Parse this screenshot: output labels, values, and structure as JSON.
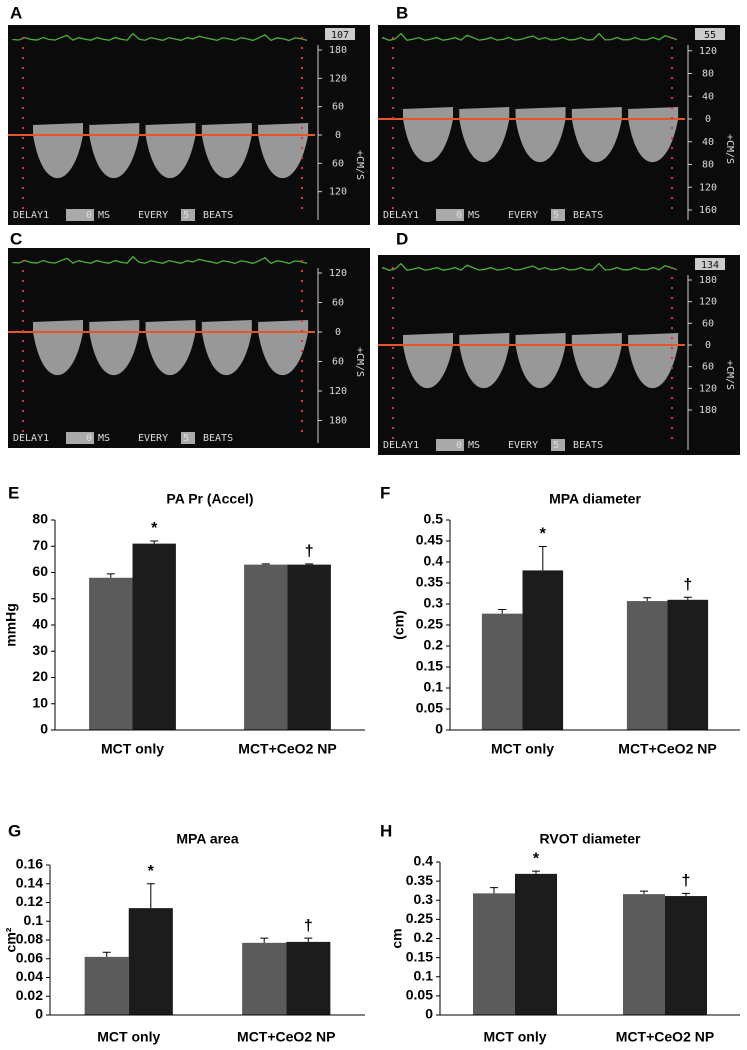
{
  "images": [
    {
      "panel": "A",
      "heart_rate": "107",
      "scale": [
        "180",
        "120",
        "60",
        "0",
        "60",
        "120"
      ],
      "unit": "+CM/S",
      "footer": [
        "DELAY1",
        "0",
        "MS",
        "EVERY",
        "5",
        "BEATS"
      ]
    },
    {
      "panel": "B",
      "heart_rate": "55",
      "scale": [
        "120",
        "80",
        "40",
        "0",
        "40",
        "80",
        "120",
        "160"
      ],
      "unit": "+CM/S",
      "footer": [
        "DELAY1",
        "0",
        "MS",
        "EVERY",
        "5",
        "BEATS"
      ]
    },
    {
      "panel": "C",
      "heart_rate": "",
      "scale": [
        "120",
        "60",
        "0",
        "60",
        "120",
        "180"
      ],
      "unit": "+CM/S",
      "footer": [
        "DELAY1",
        "0",
        "MS",
        "EVERY",
        "5",
        "BEATS"
      ]
    },
    {
      "panel": "D",
      "heart_rate": "134",
      "scale": [
        "180",
        "120",
        "60",
        "0",
        "60",
        "120",
        "180"
      ],
      "unit": "+CM/S",
      "footer": [
        "DELAY1",
        "0",
        "MS",
        "EVERY",
        "5",
        "BEATS"
      ]
    }
  ],
  "chart_data": [
    {
      "type": "bar",
      "panel": "E",
      "title": "PA Pr (Accel)",
      "y_label": "mmHg",
      "categories": [
        "MCT only",
        "MCT+CeO2 NP"
      ],
      "series": [
        {
          "color": "#5b5b5b",
          "values": [
            58,
            63
          ],
          "errors": [
            1.5,
            0.3
          ]
        },
        {
          "color": "#1c1c1c",
          "values": [
            71,
            63
          ],
          "errors": [
            1,
            0.3
          ],
          "annotations": [
            "*",
            "†"
          ]
        }
      ],
      "ylim": [
        0,
        80
      ],
      "yticks": [
        0,
        10,
        20,
        30,
        40,
        50,
        60,
        70,
        80
      ]
    },
    {
      "type": "bar",
      "panel": "F",
      "title": "MPA diameter",
      "y_label": "(cm)",
      "categories": [
        "MCT only",
        "MCT+CeO2 NP"
      ],
      "series": [
        {
          "color": "#5b5b5b",
          "values": [
            0.277,
            0.307
          ],
          "errors": [
            0.01,
            0.008
          ]
        },
        {
          "color": "#1c1c1c",
          "values": [
            0.38,
            0.31
          ],
          "errors": [
            0.057,
            0.006
          ],
          "annotations": [
            "*",
            "†"
          ]
        }
      ],
      "ylim": [
        0,
        0.5
      ],
      "yticks": [
        0,
        0.05,
        0.1,
        0.15,
        0.2,
        0.25,
        0.3,
        0.35,
        0.4,
        0.45,
        0.5
      ]
    },
    {
      "type": "bar",
      "panel": "G",
      "title": "MPA area",
      "y_label": "cm²",
      "categories": [
        "MCT only",
        "MCT+CeO2 NP"
      ],
      "series": [
        {
          "color": "#5b5b5b",
          "values": [
            0.062,
            0.077
          ],
          "errors": [
            0.005,
            0.005
          ]
        },
        {
          "color": "#1c1c1c",
          "values": [
            0.114,
            0.078
          ],
          "errors": [
            0.026,
            0.004
          ],
          "annotations": [
            "*",
            "†"
          ]
        }
      ],
      "ylim": [
        0,
        0.16
      ],
      "yticks": [
        0,
        0.02,
        0.04,
        0.06,
        0.08,
        0.1,
        0.12,
        0.14,
        0.16
      ]
    },
    {
      "type": "bar",
      "panel": "H",
      "title": "RVOT diameter",
      "y_label": "cm",
      "categories": [
        "MCT only",
        "MCT+CeO2 NP"
      ],
      "series": [
        {
          "color": "#5b5b5b",
          "values": [
            0.318,
            0.316
          ],
          "errors": [
            0.015,
            0.008
          ]
        },
        {
          "color": "#1c1c1c",
          "values": [
            0.369,
            0.311
          ],
          "errors": [
            0.007,
            0.007
          ],
          "annotations": [
            "*",
            "†"
          ]
        }
      ],
      "ylim": [
        0,
        0.4
      ],
      "yticks": [
        0,
        0.05,
        0.1,
        0.15,
        0.2,
        0.25,
        0.3,
        0.35,
        0.4
      ]
    }
  ]
}
